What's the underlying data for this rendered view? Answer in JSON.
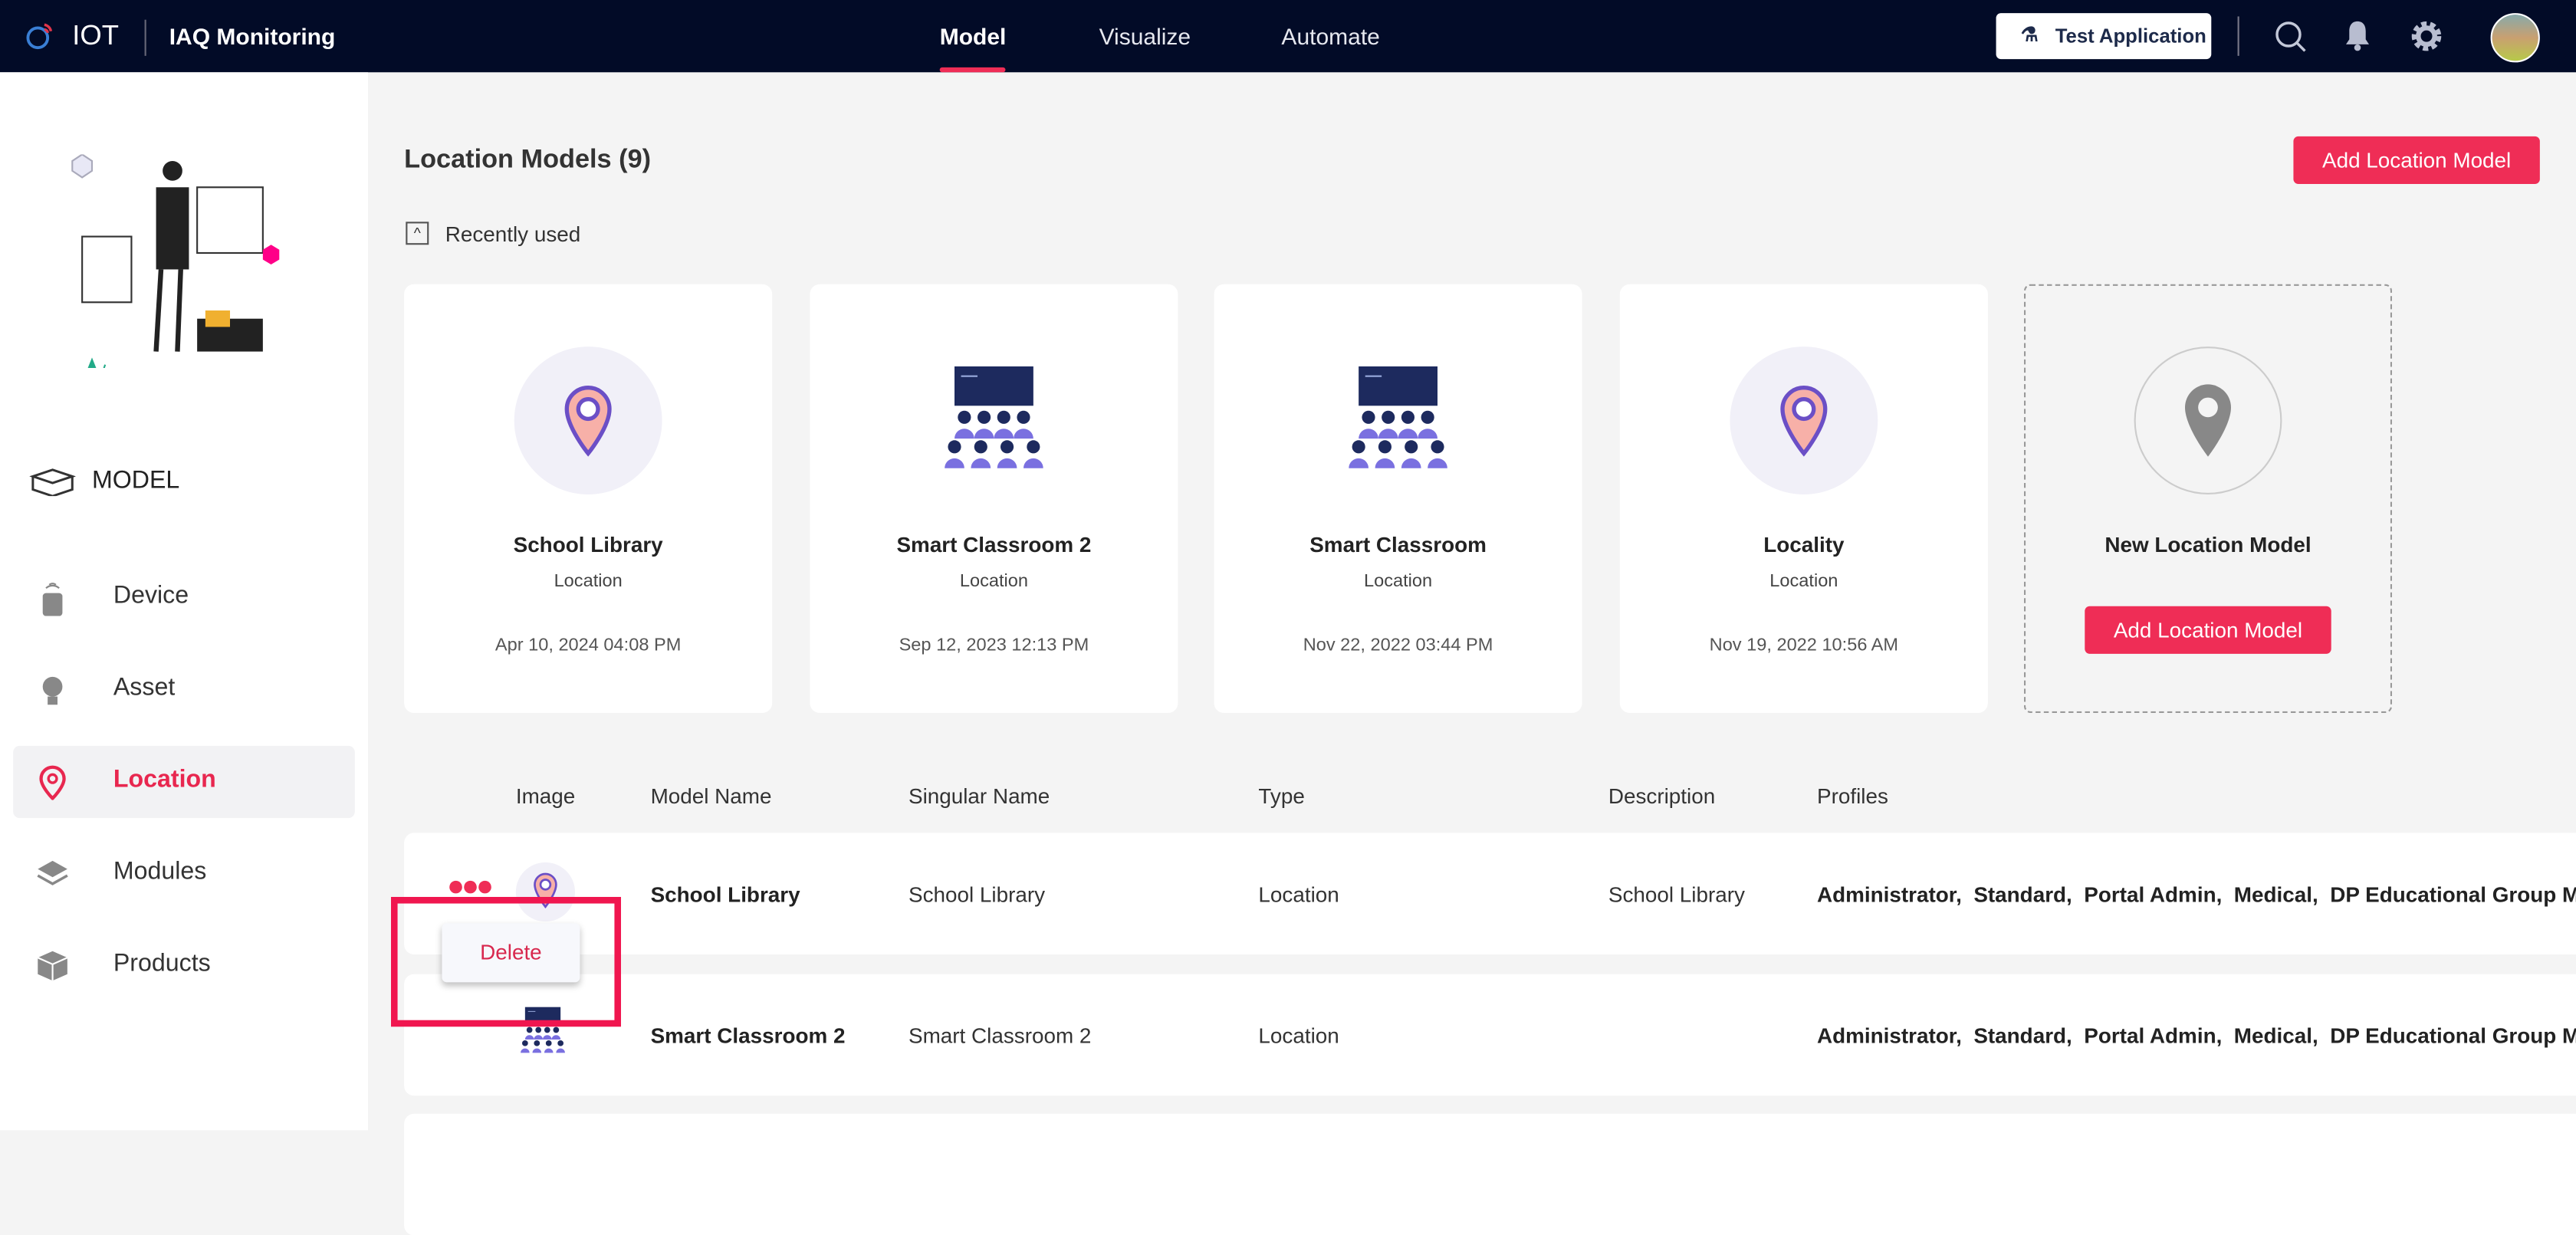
{
  "header": {
    "brand": "IOT",
    "app_name": "IAQ Monitoring",
    "tabs": [
      {
        "label": "Model",
        "active": true
      },
      {
        "label": "Visualize"
      },
      {
        "label": "Automate"
      }
    ],
    "test_button": "Test Application",
    "icons": [
      "search-icon",
      "bell-icon",
      "gear-icon",
      "avatar"
    ]
  },
  "sidebar": {
    "section": "MODEL",
    "items": [
      {
        "label": "Device",
        "icon": "device-icon"
      },
      {
        "label": "Asset",
        "icon": "bulb-icon"
      },
      {
        "label": "Location",
        "icon": "location-pin-icon",
        "active": true
      },
      {
        "label": "Modules",
        "icon": "layers-icon"
      },
      {
        "label": "Products",
        "icon": "box-icon"
      }
    ]
  },
  "main": {
    "title": "Location Models (9)",
    "add_button": "Add Location Model",
    "recently_used": "Recently used",
    "cards": [
      {
        "name": "School Library",
        "type": "Location",
        "date": "Apr 10, 2024 04:08 PM",
        "icon": "location-pin-icon"
      },
      {
        "name": "Smart Classroom 2",
        "type": "Location",
        "date": "Sep 12, 2023 12:13 PM",
        "icon": "classroom-icon"
      },
      {
        "name": "Smart Classroom",
        "type": "Location",
        "date": "Nov 22, 2022 03:44 PM",
        "icon": "classroom-icon"
      },
      {
        "name": "Locality",
        "type": "Location",
        "date": "Nov 19, 2022 10:56 AM",
        "icon": "location-pin-icon"
      }
    ],
    "new_card": {
      "title": "New Location Model",
      "button": "Add Location Model"
    },
    "table": {
      "columns": [
        "Image",
        "Model Name",
        "Singular Name",
        "Type",
        "Description",
        "Profiles"
      ],
      "rows": [
        {
          "model_name": "School Library",
          "singular_name": "School Library",
          "type": "Location",
          "description": "School Library",
          "profiles": "Administrator,  Standard,  Portal Admin,  Medical,  DP Educational Group M"
        },
        {
          "model_name": "Smart Classroom 2",
          "singular_name": "Smart Classroom 2",
          "type": "Location",
          "description": "",
          "profiles": "Administrator,  Standard,  Portal Admin,  Medical,  DP Educational Group M"
        }
      ]
    },
    "context_menu": {
      "delete": "Delete"
    }
  },
  "colors": {
    "accent": "#ef2d56",
    "header_bg": "#020b27",
    "highlight": "#f0164f"
  }
}
